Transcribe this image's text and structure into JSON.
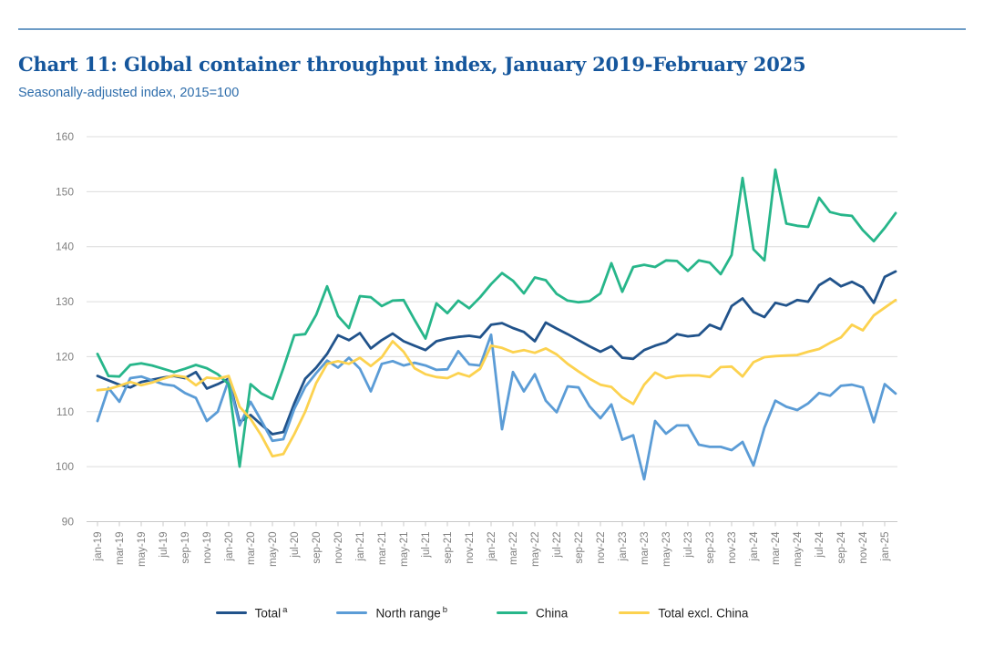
{
  "header": {
    "title": "Chart 11: Global container throughput index, January 2019-February 2025",
    "subtitle": "Seasonally-adjusted index, 2015=100"
  },
  "colors": {
    "top_rule": "#6d9cc6",
    "title_blue": "#15569c",
    "subtitle_blue": "#2e6dab",
    "gridline": "#dcdcdc",
    "axis_line": "#c8c8c8",
    "tick_label_gray": "#808080",
    "legend_text": "#222222"
  },
  "chart_data": {
    "type": "line",
    "title": "Chart 11: Global container throughput index, January 2019-February 2025",
    "subtitle": "Seasonally-adjusted index, 2015=100",
    "xlabel": "",
    "ylabel": "Seasonally-adjusted index, 2015=100",
    "ylim": [
      90,
      160
    ],
    "y_ticks": [
      160,
      150,
      140,
      130,
      120,
      110,
      100,
      90
    ],
    "grid": "horizontal",
    "legend_position": "bottom",
    "x_tick_labels": [
      "jan-19",
      "mar-19",
      "may-19",
      "jul-19",
      "sep-19",
      "nov-19",
      "jan-20",
      "mar-20",
      "may-20",
      "jul-20",
      "sep-20",
      "nov-20",
      "jan-21",
      "mar-21",
      "may-21",
      "jul-21",
      "sep-21",
      "nov-21",
      "jan-22",
      "mar-22",
      "may-22",
      "jul-22",
      "sep-22",
      "nov-22",
      "jan-23",
      "mar-23",
      "may-23",
      "jul-23",
      "sep-23",
      "nov-23",
      "jan-24",
      "mar-24",
      "may-24",
      "jul-24",
      "sep-24",
      "nov-24",
      "jan-25"
    ],
    "x": [
      "jan-19",
      "feb-19",
      "mar-19",
      "apr-19",
      "may-19",
      "jun-19",
      "jul-19",
      "aug-19",
      "sep-19",
      "oct-19",
      "nov-19",
      "dec-19",
      "jan-20",
      "feb-20",
      "mar-20",
      "apr-20",
      "may-20",
      "jun-20",
      "jul-20",
      "aug-20",
      "sep-20",
      "oct-20",
      "nov-20",
      "dec-20",
      "jan-21",
      "feb-21",
      "mar-21",
      "apr-21",
      "may-21",
      "jun-21",
      "jul-21",
      "aug-21",
      "sep-21",
      "oct-21",
      "nov-21",
      "dec-21",
      "jan-22",
      "feb-22",
      "mar-22",
      "apr-22",
      "may-22",
      "jun-22",
      "jul-22",
      "aug-22",
      "sep-22",
      "oct-22",
      "nov-22",
      "dec-22",
      "jan-23",
      "feb-23",
      "mar-23",
      "apr-23",
      "may-23",
      "jun-23",
      "jul-23",
      "aug-23",
      "sep-23",
      "oct-23",
      "nov-23",
      "dec-23",
      "jan-24",
      "feb-24",
      "mar-24",
      "apr-24",
      "may-24",
      "jun-24",
      "jul-24",
      "aug-24",
      "sep-24",
      "oct-24",
      "nov-24",
      "dec-24",
      "jan-25",
      "feb-25"
    ],
    "series": [
      {
        "name": "Total",
        "sup": "a",
        "color": "#21538b",
        "values": [
          116.5,
          115.7,
          114.9,
          114.4,
          115.4,
          115.8,
          116.2,
          116.5,
          116.1,
          117.2,
          114.2,
          115.0,
          116.0,
          108.1,
          109.4,
          107.6,
          105.9,
          106.3,
          111.5,
          116.0,
          118.0,
          120.5,
          123.9,
          123.0,
          124.3,
          121.5,
          123.0,
          124.2,
          122.8,
          122.0,
          121.2,
          122.8,
          123.3,
          123.6,
          123.8,
          123.5,
          125.8,
          126.1,
          125.2,
          124.5,
          122.8,
          126.2,
          125.1,
          124.1,
          123.0,
          121.9,
          120.9,
          121.9,
          119.8,
          119.6,
          121.2,
          122.0,
          122.6,
          124.1,
          123.7,
          123.9,
          125.8,
          125.0,
          129.2,
          130.6,
          128.1,
          127.2,
          129.8,
          129.3,
          130.3,
          130.0,
          133.0,
          134.2,
          132.8,
          133.6,
          132.6,
          129.8,
          134.5,
          135.5
        ]
      },
      {
        "name": "North range",
        "sup": "b",
        "color": "#5b9cd6",
        "values": [
          108.3,
          114.3,
          111.8,
          116.1,
          116.4,
          115.7,
          115.0,
          114.7,
          113.4,
          112.5,
          108.3,
          110.0,
          115.8,
          107.5,
          111.8,
          108.3,
          104.7,
          105.0,
          110.5,
          114.5,
          117.0,
          119.3,
          118.0,
          119.8,
          117.8,
          113.7,
          118.7,
          119.2,
          118.4,
          118.9,
          118.4,
          117.6,
          117.7,
          121.0,
          118.6,
          118.4,
          124.0,
          106.8,
          117.2,
          113.7,
          116.8,
          112.0,
          109.9,
          114.6,
          114.4,
          111.0,
          108.8,
          111.3,
          104.9,
          105.7,
          97.7,
          108.3,
          106.0,
          107.5,
          107.5,
          104.0,
          103.6,
          103.6,
          103.0,
          104.5,
          100.2,
          107.1,
          112.0,
          110.9,
          110.3,
          111.5,
          113.4,
          112.9,
          114.7,
          114.9,
          114.4,
          108.1,
          115.0,
          113.3
        ]
      },
      {
        "name": "China",
        "sup": "",
        "color": "#27b68a",
        "values": [
          120.5,
          116.5,
          116.4,
          118.5,
          118.8,
          118.4,
          117.8,
          117.2,
          117.8,
          118.5,
          117.9,
          116.8,
          115.0,
          100.0,
          115.0,
          113.3,
          112.3,
          117.9,
          123.9,
          124.1,
          127.6,
          132.8,
          127.4,
          125.2,
          131.0,
          130.8,
          129.2,
          130.2,
          130.3,
          126.7,
          123.3,
          129.7,
          127.9,
          130.2,
          128.8,
          130.8,
          133.2,
          135.2,
          133.8,
          131.5,
          134.4,
          133.9,
          131.4,
          130.2,
          129.9,
          130.1,
          131.5,
          137.0,
          131.8,
          136.3,
          136.7,
          136.3,
          137.5,
          137.4,
          135.6,
          137.5,
          137.1,
          135.0,
          138.5,
          152.5,
          139.5,
          137.5,
          154.0,
          144.2,
          143.8,
          143.6,
          148.9,
          146.3,
          145.8,
          145.6,
          143.0,
          141.0,
          143.4,
          146.1
        ]
      },
      {
        "name": "Total excl. China",
        "sup": "",
        "color": "#fcd24f",
        "values": [
          113.9,
          114.1,
          114.7,
          115.4,
          114.8,
          115.3,
          116.0,
          116.6,
          116.3,
          114.8,
          116.2,
          116.0,
          116.5,
          110.9,
          108.7,
          105.6,
          101.9,
          102.3,
          105.9,
          110.0,
          115.2,
          118.7,
          119.2,
          118.7,
          119.8,
          118.3,
          119.9,
          122.8,
          120.9,
          117.9,
          116.8,
          116.3,
          116.1,
          117.0,
          116.4,
          117.8,
          122.0,
          121.6,
          120.8,
          121.2,
          120.7,
          121.5,
          120.4,
          118.7,
          117.3,
          116.0,
          114.9,
          114.5,
          112.6,
          111.4,
          114.9,
          117.1,
          116.1,
          116.5,
          116.6,
          116.6,
          116.3,
          118.1,
          118.2,
          116.4,
          119.0,
          119.9,
          120.1,
          120.2,
          120.3,
          120.9,
          121.4,
          122.5,
          123.5,
          125.8,
          124.8,
          127.5,
          128.9,
          130.3
        ]
      }
    ]
  }
}
